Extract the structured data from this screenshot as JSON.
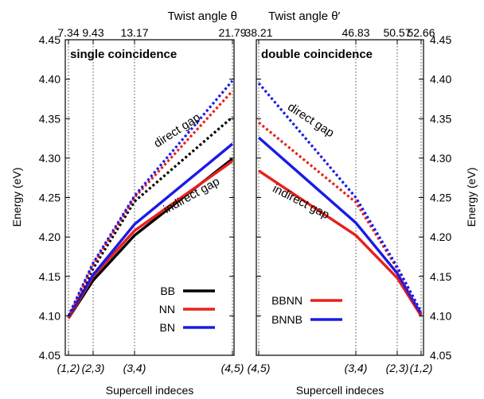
{
  "chart_data": [
    {
      "type": "line",
      "panel_title": "single coincidence",
      "xlabel": "Supercell indeces",
      "ylabel": "Energy (eV)",
      "top_axis_label": "Twist angle θ",
      "ylim": [
        4.05,
        4.45
      ],
      "y_ticks": [
        "4.05",
        "4.10",
        "4.15",
        "4.20",
        "4.25",
        "4.30",
        "4.35",
        "4.40",
        "4.45"
      ],
      "x_categories": [
        "(1,2)",
        "(2,3)",
        "(3,4)",
        "(4,5)"
      ],
      "top_ticks": [
        "7.34",
        "9.43",
        "13.17",
        "21.79"
      ],
      "grid": "vertical dotted lines at each supercell",
      "series": [
        {
          "name": "BB",
          "kind": "indirect gap",
          "color": "#000000",
          "dashed": false,
          "values": [
            4.097,
            4.145,
            4.202,
            4.299
          ]
        },
        {
          "name": "NN",
          "kind": "indirect gap",
          "color": "#e8201c",
          "dashed": false,
          "values": [
            4.097,
            4.15,
            4.208,
            4.296
          ]
        },
        {
          "name": "BN",
          "kind": "indirect gap",
          "color": "#1a1ae6",
          "dashed": false,
          "values": [
            4.099,
            4.152,
            4.216,
            4.318
          ]
        },
        {
          "name": "BB",
          "kind": "direct gap",
          "color": "#000000",
          "dashed": true,
          "values": [
            4.098,
            4.16,
            4.245,
            4.352
          ]
        },
        {
          "name": "NN",
          "kind": "direct gap",
          "color": "#e8201c",
          "dashed": true,
          "values": [
            4.098,
            4.165,
            4.25,
            4.385
          ]
        },
        {
          "name": "BN",
          "kind": "direct gap",
          "color": "#1a1ae6",
          "dashed": true,
          "values": [
            4.1,
            4.167,
            4.252,
            4.398
          ]
        }
      ],
      "legend": [
        {
          "label": "BB",
          "color": "#000000"
        },
        {
          "label": "NN",
          "color": "#e8201c"
        },
        {
          "label": "BN",
          "color": "#1a1ae6"
        }
      ],
      "legend_position": "bottom-right",
      "annotations": [
        "direct gap",
        "indirect gap"
      ]
    },
    {
      "type": "line",
      "panel_title": "double coincidence",
      "xlabel": "Supercell indeces",
      "ylabel": "Energy (eV)",
      "top_axis_label": "Twist angle θ′",
      "ylim": [
        4.05,
        4.45
      ],
      "y_ticks": [
        "4.05",
        "4.10",
        "4.15",
        "4.20",
        "4.25",
        "4.30",
        "4.35",
        "4.40",
        "4.45"
      ],
      "x_categories": [
        "(4,5)",
        "(3,4)",
        "(2,3)",
        "(1,2)"
      ],
      "top_ticks": [
        "38.21",
        "46.83",
        "50.57",
        "52.66"
      ],
      "grid": "vertical dotted lines at each supercell",
      "series": [
        {
          "name": "BBNN",
          "kind": "indirect gap",
          "color": "#e8201c",
          "dashed": false,
          "values": [
            4.284,
            4.202,
            4.148,
            4.1
          ]
        },
        {
          "name": "BNNB",
          "kind": "indirect gap",
          "color": "#1a1ae6",
          "dashed": false,
          "values": [
            4.326,
            4.218,
            4.154,
            4.102
          ]
        },
        {
          "name": "BBNN",
          "kind": "direct gap",
          "color": "#e8201c",
          "dashed": true,
          "values": [
            4.345,
            4.244,
            4.16,
            4.103
          ]
        },
        {
          "name": "BNNB",
          "kind": "direct gap",
          "color": "#1a1ae6",
          "dashed": true,
          "values": [
            4.395,
            4.25,
            4.162,
            4.105
          ]
        }
      ],
      "legend": [
        {
          "label": "BBNN",
          "color": "#e8201c"
        },
        {
          "label": "BNNB",
          "color": "#1a1ae6"
        }
      ],
      "legend_position": "bottom-left",
      "annotations": [
        "direct gap",
        "indirect gap"
      ]
    }
  ]
}
